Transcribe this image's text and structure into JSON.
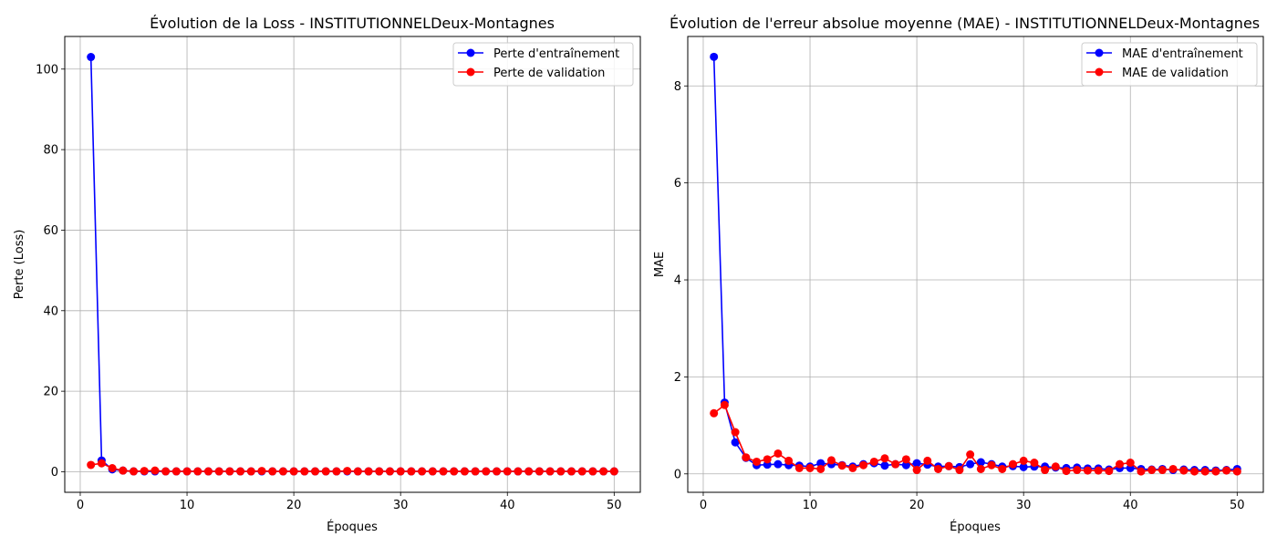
{
  "chart_data": [
    {
      "type": "line",
      "title": "Évolution de la Loss - INSTITUTIONNELDeux-Montagnes",
      "xlabel": "Époques",
      "ylabel": "Perte (Loss)",
      "xlim": [
        -1.45,
        52.45
      ],
      "ylim": [
        -5.1,
        108.1
      ],
      "xticks": [
        0,
        10,
        20,
        30,
        40,
        50
      ],
      "yticks": [
        0,
        20,
        40,
        60,
        80,
        100
      ],
      "grid": true,
      "legend_position": "top-right",
      "x": [
        1,
        2,
        3,
        4,
        5,
        6,
        7,
        8,
        9,
        10,
        11,
        12,
        13,
        14,
        15,
        16,
        17,
        18,
        19,
        20,
        21,
        22,
        23,
        24,
        25,
        26,
        27,
        28,
        29,
        30,
        31,
        32,
        33,
        34,
        35,
        36,
        37,
        38,
        39,
        40,
        41,
        42,
        43,
        44,
        45,
        46,
        47,
        48,
        49,
        50
      ],
      "series": [
        {
          "name": "Perte d'entraînement",
          "color": "#0000ff",
          "values": [
            103.0,
            2.8,
            0.6,
            0.3,
            0.1,
            0.1,
            0.1,
            0.1,
            0.1,
            0.1,
            0.1,
            0.1,
            0.1,
            0.1,
            0.1,
            0.1,
            0.1,
            0.1,
            0.1,
            0.1,
            0.1,
            0.1,
            0.1,
            0.1,
            0.1,
            0.1,
            0.1,
            0.1,
            0.1,
            0.1,
            0.1,
            0.1,
            0.1,
            0.1,
            0.1,
            0.1,
            0.1,
            0.1,
            0.1,
            0.1,
            0.1,
            0.1,
            0.1,
            0.1,
            0.1,
            0.1,
            0.1,
            0.1,
            0.1,
            0.1
          ]
        },
        {
          "name": "Perte de validation",
          "color": "#ff0000",
          "values": [
            1.7,
            2.1,
            0.9,
            0.3,
            0.1,
            0.2,
            0.3,
            0.1,
            0.1,
            0.1,
            0.1,
            0.1,
            0.1,
            0.1,
            0.1,
            0.1,
            0.2,
            0.1,
            0.1,
            0.1,
            0.1,
            0.1,
            0.1,
            0.1,
            0.2,
            0.1,
            0.1,
            0.1,
            0.1,
            0.1,
            0.1,
            0.1,
            0.1,
            0.1,
            0.1,
            0.1,
            0.1,
            0.1,
            0.1,
            0.1,
            0.1,
            0.1,
            0.1,
            0.1,
            0.1,
            0.1,
            0.1,
            0.1,
            0.1,
            0.1
          ]
        }
      ]
    },
    {
      "type": "line",
      "title": "Évolution de l'erreur absolue moyenne (MAE) - INSTITUTIONNELDeux-Montagnes",
      "xlabel": "Époques",
      "ylabel": "MAE",
      "xlim": [
        -1.45,
        52.45
      ],
      "ylim": [
        -0.38,
        9.02
      ],
      "xticks": [
        0,
        10,
        20,
        30,
        40,
        50
      ],
      "yticks": [
        0,
        2,
        4,
        6,
        8
      ],
      "grid": true,
      "legend_position": "top-right",
      "x": [
        1,
        2,
        3,
        4,
        5,
        6,
        7,
        8,
        9,
        10,
        11,
        12,
        13,
        14,
        15,
        16,
        17,
        18,
        19,
        20,
        21,
        22,
        23,
        24,
        25,
        26,
        27,
        28,
        29,
        30,
        31,
        32,
        33,
        34,
        35,
        36,
        37,
        38,
        39,
        40,
        41,
        42,
        43,
        44,
        45,
        46,
        47,
        48,
        49,
        50
      ],
      "series": [
        {
          "name": "MAE d'entraînement",
          "color": "#0000ff",
          "values": [
            8.6,
            1.47,
            0.65,
            0.33,
            0.18,
            0.19,
            0.2,
            0.18,
            0.17,
            0.15,
            0.22,
            0.2,
            0.18,
            0.15,
            0.2,
            0.22,
            0.17,
            0.2,
            0.18,
            0.22,
            0.19,
            0.15,
            0.16,
            0.14,
            0.2,
            0.24,
            0.2,
            0.15,
            0.16,
            0.14,
            0.15,
            0.15,
            0.13,
            0.12,
            0.13,
            0.11,
            0.11,
            0.09,
            0.12,
            0.12,
            0.1,
            0.09,
            0.1,
            0.08,
            0.09,
            0.08,
            0.08,
            0.07,
            0.08,
            0.1
          ]
        },
        {
          "name": "MAE de validation",
          "color": "#ff0000",
          "values": [
            1.25,
            1.42,
            0.86,
            0.34,
            0.25,
            0.3,
            0.42,
            0.27,
            0.12,
            0.12,
            0.1,
            0.28,
            0.17,
            0.12,
            0.18,
            0.25,
            0.32,
            0.2,
            0.3,
            0.08,
            0.27,
            0.1,
            0.16,
            0.08,
            0.4,
            0.1,
            0.18,
            0.1,
            0.2,
            0.27,
            0.23,
            0.08,
            0.15,
            0.06,
            0.08,
            0.07,
            0.07,
            0.06,
            0.2,
            0.23,
            0.05,
            0.08,
            0.08,
            0.1,
            0.07,
            0.05,
            0.05,
            0.05,
            0.07,
            0.05
          ]
        }
      ]
    }
  ]
}
